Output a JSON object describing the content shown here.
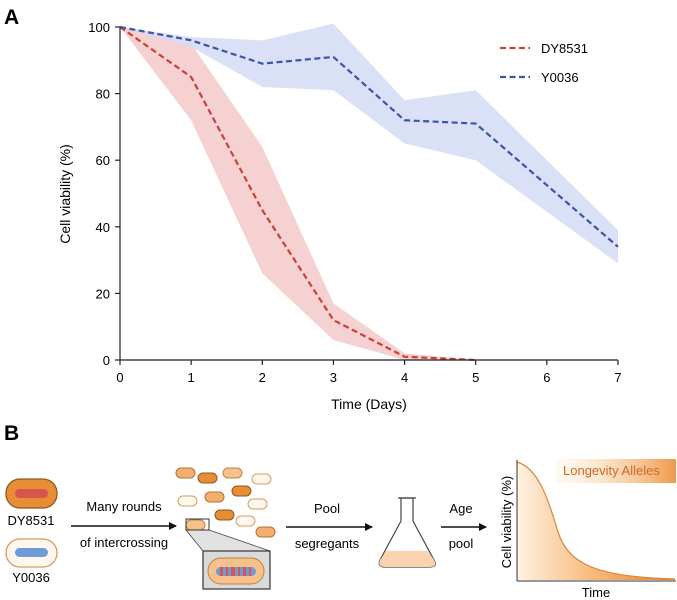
{
  "panel_a_label": "A",
  "panel_b_label": "B",
  "chart_data": [
    {
      "type": "line",
      "xlabel": "Time (Days)",
      "ylabel": "Cell viability (%)",
      "xlim": [
        0,
        7
      ],
      "ylim": [
        0,
        100
      ],
      "xticks": [
        "0",
        "1",
        "2",
        "3",
        "4",
        "5",
        "6",
        "7"
      ],
      "yticks": [
        "0",
        "20",
        "40",
        "60",
        "80",
        "100"
      ],
      "grid": false,
      "legend_position": "top-right",
      "series": [
        {
          "name": "DY8531",
          "color": "#c9413b",
          "band_color": "#f4c9c9",
          "x": [
            0,
            1,
            2,
            3,
            4,
            5
          ],
          "values": [
            100,
            85,
            45,
            12,
            1,
            0
          ],
          "lower": [
            100,
            72,
            26,
            6,
            0,
            0
          ],
          "upper": [
            100,
            95,
            64,
            17,
            2,
            0
          ]
        },
        {
          "name": "Y0036",
          "color": "#3d55a6",
          "band_color": "#d4dcf6",
          "x": [
            0,
            1,
            2,
            3,
            4,
            5,
            7
          ],
          "values": [
            100,
            96,
            89,
            91,
            72,
            71,
            34
          ],
          "lower": [
            100,
            94,
            82,
            81,
            65,
            60,
            29
          ],
          "upper": [
            100,
            97,
            96,
            101,
            78,
            81,
            39
          ]
        }
      ]
    },
    {
      "type": "area",
      "xlabel": "Time",
      "ylabel": "Cell viability (%)",
      "annotation": "Longevity Alleles",
      "color": "#e8882f"
    }
  ],
  "schematic": {
    "strain1": "DY8531",
    "strain2": "Y0036",
    "step1_line1": "Many rounds",
    "step1_line2": "of intercrossing",
    "step2_line1": "Pool",
    "step2_line2": "segregants",
    "step3_line1": "Age",
    "step3_line2": "pool"
  }
}
